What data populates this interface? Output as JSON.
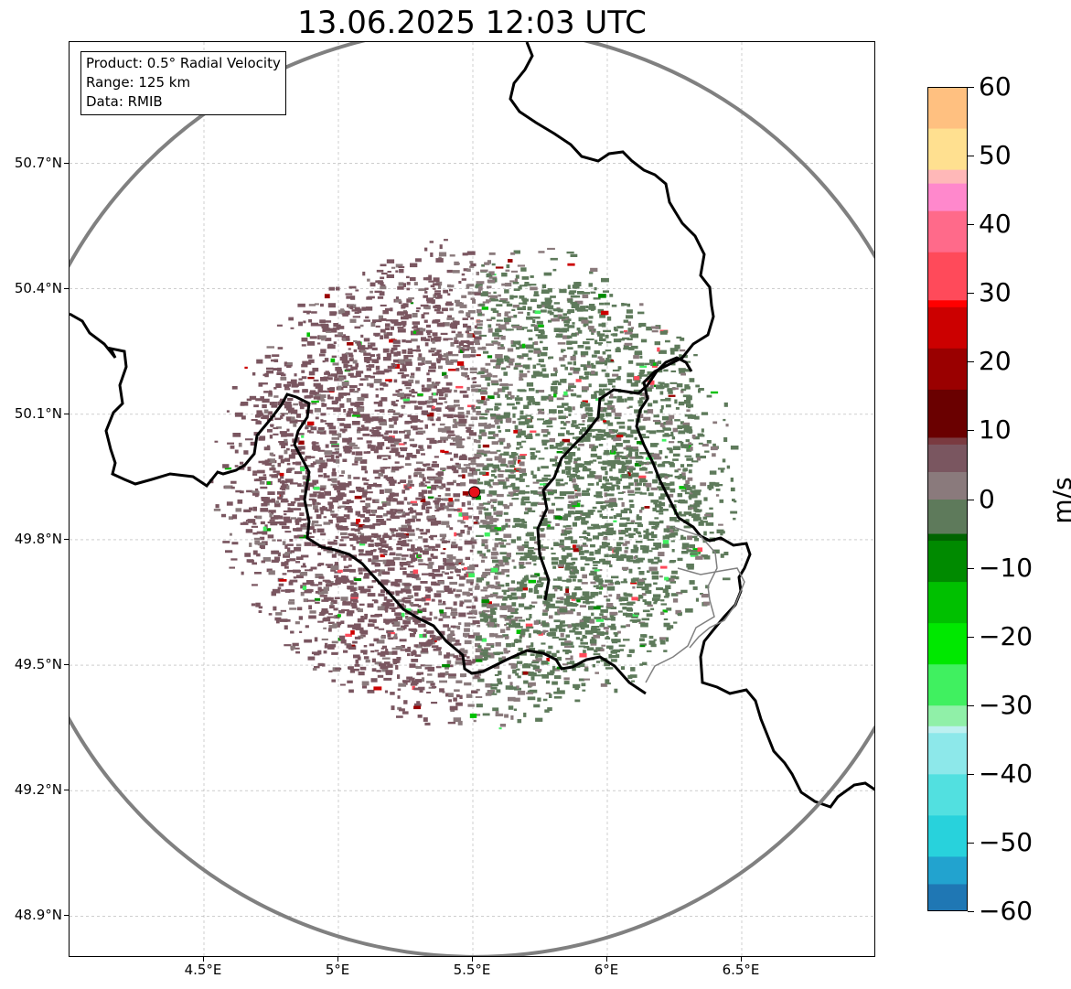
{
  "title": "13.06.2025 12:03 UTC",
  "info": {
    "product": "Product: 0.5° Radial Velocity",
    "range": "Range: 125 km",
    "source": "Data: RMIB"
  },
  "axes": {
    "lat_labels": [
      "50.7°N",
      "50.4°N",
      "50.1°N",
      "49.8°N",
      "49.5°N",
      "49.2°N",
      "48.9°N"
    ],
    "lon_labels": [
      "4.5°E",
      "5°E",
      "5.5°E",
      "6°E",
      "6.5°E"
    ],
    "lat_values": [
      50.7,
      50.4,
      50.1,
      49.8,
      49.5,
      49.2,
      48.9
    ],
    "lon_values": [
      4.5,
      5.0,
      5.5,
      6.0,
      6.5
    ],
    "lat_range": [
      48.8,
      50.99
    ],
    "lon_range": [
      4.0,
      7.0
    ]
  },
  "radar": {
    "lat": 49.914,
    "lon": 5.506,
    "range_km": 125,
    "marker_color": "#e8101a"
  },
  "colors": {
    "approaching": "#5e7a5b",
    "receding": "#7a5660",
    "neutral": "#8a7a7c",
    "range_ring": "#808080",
    "border": "#000000"
  },
  "colorbar": {
    "unit": "m/s",
    "min": -60,
    "max": 60,
    "tick_labels": [
      "60",
      "50",
      "40",
      "30",
      "20",
      "10",
      "0",
      "−10",
      "−20",
      "−30",
      "−40",
      "−50",
      "−60"
    ],
    "tick_values": [
      60,
      50,
      40,
      30,
      20,
      10,
      0,
      -10,
      -20,
      -30,
      -40,
      -50,
      -60
    ],
    "stops": [
      {
        "v": -60,
        "c": "#1f77b4"
      },
      {
        "v": -56,
        "c": "#22a3cf"
      },
      {
        "v": -52,
        "c": "#28d2dc"
      },
      {
        "v": -46,
        "c": "#52e0e0"
      },
      {
        "v": -40,
        "c": "#8de8ea"
      },
      {
        "v": -34,
        "c": "#bdf0f0"
      },
      {
        "v": -33,
        "c": "#90f0a8"
      },
      {
        "v": -30,
        "c": "#40f060"
      },
      {
        "v": -24,
        "c": "#00e800"
      },
      {
        "v": -18,
        "c": "#00c000"
      },
      {
        "v": -12,
        "c": "#008a00"
      },
      {
        "v": -6,
        "c": "#006400"
      },
      {
        "v": -5,
        "c": "#5e7a5b"
      },
      {
        "v": 0,
        "c": "#8a7a7c"
      },
      {
        "v": 4,
        "c": "#7a5660"
      },
      {
        "v": 8,
        "c": "#7a3a40"
      },
      {
        "v": 9,
        "c": "#6a0000"
      },
      {
        "v": 16,
        "c": "#9a0000"
      },
      {
        "v": 22,
        "c": "#cc0000"
      },
      {
        "v": 28,
        "c": "#ff0000"
      },
      {
        "v": 29,
        "c": "#ff4a5a"
      },
      {
        "v": 36,
        "c": "#ff6a8a"
      },
      {
        "v": 42,
        "c": "#ff88cc"
      },
      {
        "v": 46,
        "c": "#ffb8b8"
      },
      {
        "v": 48,
        "c": "#ffe090"
      },
      {
        "v": 54,
        "c": "#ffc080"
      },
      {
        "v": 60,
        "c": "#ff9a50"
      }
    ]
  }
}
